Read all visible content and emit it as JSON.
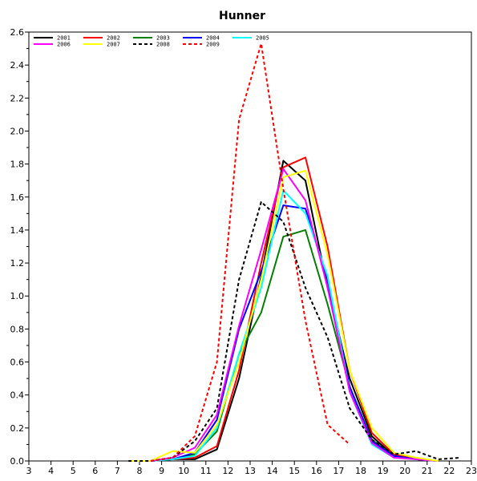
{
  "chart_data": {
    "type": "line",
    "title": "Hunner",
    "xlabel": "",
    "ylabel": "",
    "xlim": [
      3,
      23
    ],
    "ylim": [
      0,
      2.6
    ],
    "xticks": [
      "3",
      "4",
      "5",
      "6",
      "7",
      "8",
      "9",
      "10",
      "11",
      "12",
      "13",
      "14",
      "15",
      "16",
      "17",
      "18",
      "19",
      "20",
      "21",
      "22",
      "23"
    ],
    "yticks": [
      "0.0",
      "0.2",
      "0.4",
      "0.6",
      "0.8",
      "1.0",
      "1.2",
      "1.4",
      "1.6",
      "1.8",
      "2.0",
      "2.2",
      "2.4",
      "2.6"
    ],
    "grid": false,
    "legend_placement": "top-left",
    "series": [
      {
        "name": "2001",
        "color": "#000000",
        "dash": "solid",
        "x": [
          7.5,
          8.5,
          9.5,
          10.5,
          11.5,
          12.5,
          13.5,
          14.5,
          15.5,
          16.5,
          17.5,
          18.5,
          19.5,
          20.5,
          21.5
        ],
        "y": [
          0.0,
          0.0,
          0.01,
          0.01,
          0.07,
          0.5,
          1.12,
          1.82,
          1.7,
          1.05,
          0.5,
          0.15,
          0.03,
          0.01,
          0.0
        ]
      },
      {
        "name": "2002",
        "color": "#ff0000",
        "dash": "solid",
        "x": [
          7.5,
          8.5,
          9.5,
          10.5,
          11.5,
          12.5,
          13.5,
          14.5,
          15.5,
          16.5,
          17.5,
          18.5,
          19.5,
          20.5,
          21.5
        ],
        "y": [
          0.0,
          0.0,
          0.01,
          0.02,
          0.09,
          0.55,
          1.2,
          1.78,
          1.84,
          1.3,
          0.55,
          0.17,
          0.04,
          0.01,
          0.0
        ]
      },
      {
        "name": "2003",
        "color": "#008000",
        "dash": "solid",
        "x": [
          7.5,
          8.5,
          9.5,
          10.5,
          11.5,
          12.5,
          13.5,
          14.5,
          15.5,
          16.5,
          17.5,
          18.5,
          19.5,
          20.5,
          21.5
        ],
        "y": [
          0.0,
          0.0,
          0.01,
          0.04,
          0.18,
          0.65,
          0.9,
          1.36,
          1.4,
          0.95,
          0.45,
          0.13,
          0.03,
          0.01,
          0.0
        ]
      },
      {
        "name": "2004",
        "color": "#0000ff",
        "dash": "solid",
        "x": [
          7.5,
          8.5,
          9.5,
          10.5,
          11.5,
          12.5,
          13.5,
          14.5,
          15.5,
          16.5,
          17.5,
          18.5,
          19.5,
          20.5,
          21.5
        ],
        "y": [
          0.0,
          0.0,
          0.01,
          0.05,
          0.25,
          0.8,
          1.15,
          1.55,
          1.53,
          1.1,
          0.45,
          0.12,
          0.03,
          0.01,
          0.0
        ]
      },
      {
        "name": "2005",
        "color": "#00ffff",
        "dash": "solid",
        "x": [
          7.5,
          8.5,
          9.5,
          10.5,
          11.5,
          12.5,
          13.5,
          14.5,
          15.5,
          16.5,
          17.5,
          18.5,
          19.5,
          20.5,
          21.5
        ],
        "y": [
          0.0,
          0.0,
          0.01,
          0.03,
          0.2,
          0.65,
          1.05,
          1.64,
          1.5,
          1.12,
          0.42,
          0.1,
          0.02,
          0.01,
          0.0
        ]
      },
      {
        "name": "2006",
        "color": "#ff00ff",
        "dash": "solid",
        "x": [
          7.5,
          8.5,
          9.5,
          10.5,
          11.5,
          12.5,
          13.5,
          14.5,
          15.5,
          16.5,
          17.5,
          18.5,
          19.5,
          20.5,
          21.5
        ],
        "y": [
          0.0,
          0.0,
          0.02,
          0.08,
          0.28,
          0.82,
          1.28,
          1.77,
          1.58,
          1.05,
          0.42,
          0.11,
          0.02,
          0.01,
          0.0
        ]
      },
      {
        "name": "2007",
        "color": "#ffff00",
        "dash": "solid",
        "x": [
          7.5,
          8.5,
          9.5,
          10.5,
          11.5,
          12.5,
          13.5,
          14.5,
          15.5,
          16.5,
          17.5,
          18.5,
          19.5,
          20.5,
          21.5
        ],
        "y": [
          0.0,
          0.0,
          0.06,
          0.05,
          0.22,
          0.6,
          1.1,
          1.72,
          1.76,
          1.25,
          0.55,
          0.2,
          0.05,
          0.02,
          0.0
        ]
      },
      {
        "name": "2008",
        "color": "#000000",
        "dash": "dashed",
        "x": [
          7.5,
          8.5,
          9.5,
          10.5,
          11.5,
          12.5,
          13.5,
          14.5,
          15.5,
          16.5,
          17.5,
          18.5,
          19.5,
          20.5,
          21.5,
          22.5
        ],
        "y": [
          0.0,
          0.0,
          0.02,
          0.12,
          0.32,
          1.1,
          1.57,
          1.45,
          1.05,
          0.75,
          0.32,
          0.13,
          0.04,
          0.06,
          0.01,
          0.02
        ]
      },
      {
        "name": "2009",
        "color": "#ff0000",
        "dash": "dashed",
        "x": [
          8.5,
          9.5,
          10.5,
          11.5,
          12.5,
          13.5,
          14.5,
          15.5,
          16.5,
          17.5
        ],
        "y": [
          0.0,
          0.02,
          0.15,
          0.6,
          2.07,
          2.53,
          1.65,
          0.85,
          0.22,
          0.1
        ]
      }
    ]
  }
}
